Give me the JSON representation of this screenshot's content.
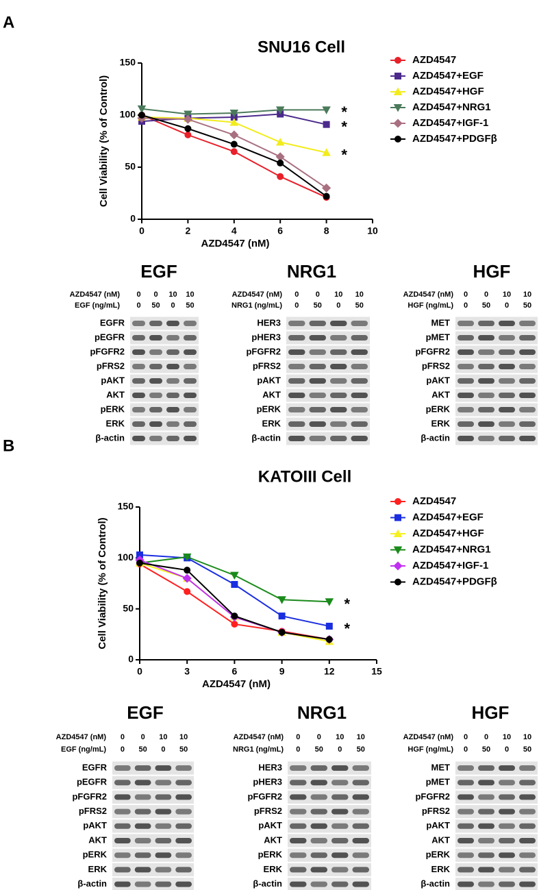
{
  "panel_labels": [
    "A",
    "B"
  ],
  "chart_data": [
    {
      "type": "line",
      "title": "SNU16 Cell",
      "x_label": "AZD4547 (nM)",
      "y_label": "Cell Viability (% of Control)",
      "x": [
        0,
        2,
        4,
        6,
        8
      ],
      "xlim": [
        0,
        10
      ],
      "xticks": [
        0,
        2,
        4,
        6,
        8,
        10
      ],
      "ylim": [
        0,
        150
      ],
      "yticks": [
        0,
        50,
        100,
        150
      ],
      "series": [
        {
          "name": "AZD4547",
          "color": "#e8202a",
          "marker": "circle",
          "values": [
            100,
            81,
            65,
            41,
            21
          ]
        },
        {
          "name": "AZD4547+EGF",
          "color": "#4b2a8c",
          "marker": "square",
          "values": [
            94,
            97,
            98,
            101,
            91
          ],
          "annotation": "*"
        },
        {
          "name": "AZD4547+HGF",
          "color": "#f2ec1e",
          "marker": "triangle-up",
          "values": [
            98,
            97,
            93,
            74,
            64
          ],
          "annotation": "*"
        },
        {
          "name": "AZD4547+NRG1",
          "color": "#4a7a5a",
          "marker": "triangle-down",
          "values": [
            106,
            101,
            102,
            105,
            105
          ],
          "annotation": "*"
        },
        {
          "name": "AZD4547+IGF-1",
          "color": "#a87080",
          "marker": "diamond",
          "values": [
            97,
            96,
            81,
            60,
            30
          ]
        },
        {
          "name": "AZD4547+PDGFβ",
          "color": "#000000",
          "marker": "circle",
          "values": [
            100,
            87,
            72,
            54,
            22
          ]
        }
      ]
    },
    {
      "type": "line",
      "title": "KATOIII Cell",
      "x_label": "AZD4547 (nM)",
      "y_label": "Cell Viability (% of Control)",
      "x": [
        0,
        3,
        6,
        9,
        12
      ],
      "xlim": [
        0,
        15
      ],
      "xticks": [
        0,
        3,
        6,
        9,
        12,
        15
      ],
      "ylim": [
        0,
        150
      ],
      "yticks": [
        0,
        50,
        100,
        150
      ],
      "series": [
        {
          "name": "AZD4547",
          "color": "#ff2020",
          "marker": "circle",
          "values": [
            94,
            67,
            35,
            28,
            20
          ]
        },
        {
          "name": "AZD4547+EGF",
          "color": "#1a2ee0",
          "marker": "square",
          "values": [
            103,
            100,
            74,
            43,
            33
          ],
          "annotation": "*"
        },
        {
          "name": "AZD4547+HGF",
          "color": "#f5f01e",
          "marker": "triangle-up",
          "values": [
            95,
            80,
            42,
            27,
            18
          ]
        },
        {
          "name": "AZD4547+NRG1",
          "color": "#1a8a1a",
          "marker": "triangle-down",
          "values": [
            95,
            101,
            83,
            59,
            57
          ],
          "annotation": "*"
        },
        {
          "name": "AZD4547+IGF-1",
          "color": "#c030f0",
          "marker": "diamond",
          "values": [
            98,
            80,
            42,
            27,
            20
          ]
        },
        {
          "name": "AZD4547+PDGFβ",
          "color": "#000000",
          "marker": "circle",
          "values": [
            95,
            88,
            43,
            27,
            20
          ]
        }
      ]
    }
  ],
  "blots": [
    {
      "title": "EGF",
      "headers": [
        {
          "label": "AZD4547 (nM)",
          "values": [
            0,
            0,
            10,
            10
          ]
        },
        {
          "label": "EGF (ng/mL)",
          "values": [
            0,
            50,
            0,
            50
          ]
        }
      ],
      "rows": [
        "EGFR",
        "pEGFR",
        "pFGFR2",
        "pFRS2",
        "pAKT",
        "AKT",
        "pERK",
        "ERK",
        "β-actin"
      ]
    },
    {
      "title": "NRG1",
      "headers": [
        {
          "label": "AZD4547 (nM)",
          "values": [
            0,
            0,
            10,
            10
          ]
        },
        {
          "label": "NRG1 (ng/mL)",
          "values": [
            0,
            50,
            0,
            50
          ]
        }
      ],
      "rows": [
        "HER3",
        "pHER3",
        "pFGFR2",
        "pFRS2",
        "pAKT",
        "AKT",
        "pERK",
        "ERK",
        "β-actin"
      ]
    },
    {
      "title": "HGF",
      "headers": [
        {
          "label": "AZD4547 (nM)",
          "values": [
            0,
            0,
            10,
            10
          ]
        },
        {
          "label": "HGF (ng/mL)",
          "values": [
            0,
            50,
            0,
            50
          ]
        }
      ],
      "rows": [
        "MET",
        "pMET",
        "pFGFR2",
        "pFRS2",
        "pAKT",
        "AKT",
        "pERK",
        "ERK",
        "β-actin"
      ]
    },
    {
      "title": "EGF",
      "headers": [
        {
          "label": "AZD4547 (nM)",
          "values": [
            0,
            0,
            10,
            10
          ]
        },
        {
          "label": "EGF (ng/mL)",
          "values": [
            0,
            50,
            0,
            50
          ]
        }
      ],
      "rows": [
        "EGFR",
        "pEGFR",
        "pFGFR2",
        "pFRS2",
        "pAKT",
        "AKT",
        "pERK",
        "ERK",
        "β-actin"
      ]
    },
    {
      "title": "NRG1",
      "headers": [
        {
          "label": "AZD4547 (nM)",
          "values": [
            0,
            0,
            10,
            10
          ]
        },
        {
          "label": "NRG1 (ng/mL)",
          "values": [
            0,
            50,
            0,
            50
          ]
        }
      ],
      "rows": [
        "HER3",
        "pHER3",
        "pFGFR2",
        "pFRS2",
        "pAKT",
        "AKT",
        "pERK",
        "ERK",
        "β-actin"
      ]
    },
    {
      "title": "HGF",
      "headers": [
        {
          "label": "AZD4547 (nM)",
          "values": [
            0,
            0,
            10,
            10
          ]
        },
        {
          "label": "HGF (ng/mL)",
          "values": [
            0,
            50,
            0,
            50
          ]
        }
      ],
      "rows": [
        "MET",
        "pMET",
        "pFGFR2",
        "pFRS2",
        "pAKT",
        "AKT",
        "pERK",
        "ERK",
        "β-actin"
      ]
    }
  ]
}
